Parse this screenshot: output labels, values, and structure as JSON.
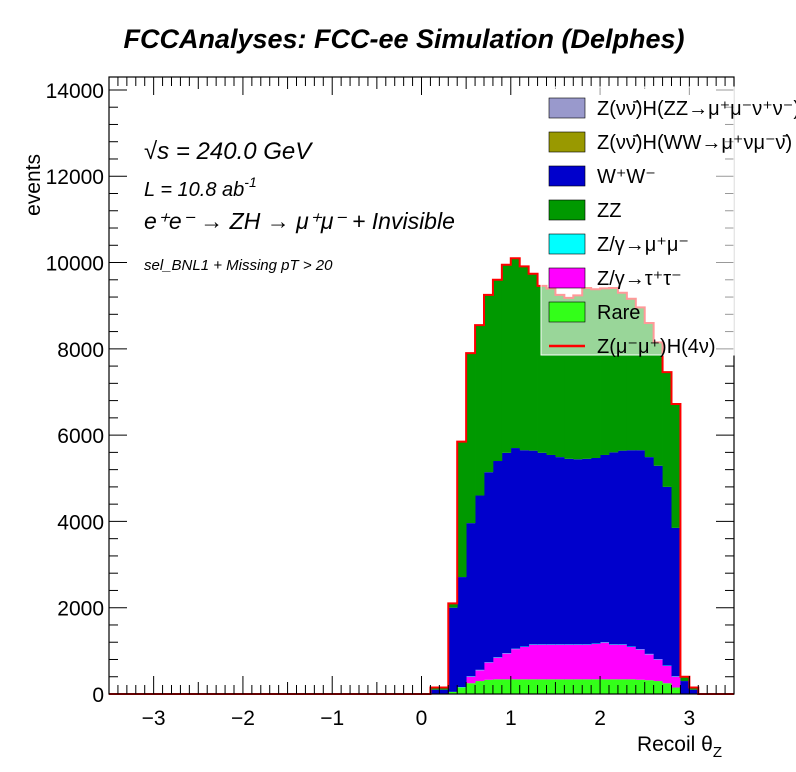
{
  "chart_data": {
    "type": "bar",
    "stacked": true,
    "title": "FCCAnalyses: FCC-ee Simulation (Delphes)",
    "xlabel": "Recoil θ",
    "xlabel_sub": "Z",
    "ylabel": "events",
    "xlim": [
      -3.5,
      3.5
    ],
    "ylim": [
      0,
      14300
    ],
    "x_ticks": [
      -3,
      -2,
      -1,
      0,
      1,
      2,
      3
    ],
    "y_ticks": [
      0,
      2000,
      4000,
      6000,
      8000,
      10000,
      12000,
      14000
    ],
    "legend_position": "top-right",
    "annotations": {
      "sqrt_s": "√s = 240.0 GeV",
      "lumi": "L = 10.8 ab",
      "lumi_sup": "-1",
      "process": "e⁺e⁻ → ZH → μ⁺μ⁻ + Invisible",
      "selection": "sel_BNL1 + Missing pT > 20"
    },
    "bins": {
      "x_start": 0.1,
      "width": 0.1,
      "count": 30
    },
    "series": [
      {
        "name": "Rare",
        "color": "#33ff19",
        "values": [
          0,
          0,
          50,
          150,
          250,
          300,
          330,
          340,
          340,
          340,
          340,
          340,
          340,
          340,
          340,
          340,
          340,
          340,
          340,
          340,
          340,
          340,
          340,
          330,
          320,
          300,
          250,
          150,
          0,
          0
        ]
      },
      {
        "name": "Z/γ→τ⁺τ⁻",
        "color": "#ff00ff",
        "values": [
          0,
          0,
          0,
          0,
          150,
          250,
          400,
          500,
          600,
          700,
          750,
          800,
          800,
          800,
          800,
          800,
          800,
          800,
          820,
          850,
          800,
          800,
          750,
          700,
          600,
          500,
          400,
          250,
          0,
          0
        ]
      },
      {
        "name": "Z/γ→μ⁺μ⁻",
        "color": "#00ffff",
        "values": [
          0,
          0,
          0,
          10,
          10,
          10,
          10,
          10,
          10,
          10,
          10,
          10,
          10,
          10,
          10,
          10,
          10,
          10,
          10,
          10,
          10,
          10,
          10,
          10,
          10,
          10,
          10,
          10,
          0,
          0
        ]
      },
      {
        "name": "W⁺W⁻",
        "color": "#0000cc",
        "values": [
          100,
          100,
          1950,
          2550,
          3550,
          4040,
          4400,
          4550,
          4640,
          4650,
          4550,
          4490,
          4440,
          4390,
          4340,
          4300,
          4290,
          4300,
          4300,
          4340,
          4450,
          4490,
          4550,
          4610,
          4560,
          4480,
          4140,
          3440,
          300,
          100
        ]
      },
      {
        "name": "ZZ",
        "color": "#009900",
        "values": [
          50,
          50,
          100,
          3140,
          3940,
          3940,
          4100,
          4190,
          4350,
          4390,
          4250,
          4100,
          3860,
          3850,
          3750,
          3720,
          3790,
          3950,
          3900,
          3850,
          3800,
          3650,
          3500,
          3300,
          3100,
          2850,
          2650,
          2850,
          100,
          50
        ]
      },
      {
        "name": "Z(νν̄)H(WW→μ⁺νμ⁻ν̄)",
        "color": "#999900",
        "values": [
          0,
          0,
          0,
          0,
          0,
          0,
          0,
          0,
          0,
          0,
          0,
          0,
          0,
          0,
          0,
          0,
          0,
          0,
          0,
          0,
          0,
          0,
          0,
          0,
          0,
          0,
          0,
          0,
          0,
          0
        ]
      },
      {
        "name": "Z(νν̄)H(ZZ→μ⁺μ⁻ν⁺ν⁻)",
        "color": "#9999cc",
        "values": [
          0,
          0,
          0,
          0,
          0,
          0,
          0,
          0,
          0,
          0,
          0,
          0,
          0,
          0,
          0,
          0,
          0,
          0,
          0,
          0,
          0,
          0,
          0,
          0,
          0,
          0,
          0,
          0,
          0,
          0
        ]
      }
    ],
    "signal": {
      "name": "Z(μ⁻μ⁺)H(4ν)",
      "color": "#ff0000",
      "values": [
        150,
        150,
        2100,
        5850,
        7900,
        8550,
        9250,
        9600,
        9950,
        10100,
        9910,
        9740,
        9460,
        9400,
        9250,
        9180,
        9240,
        9410,
        9380,
        9400,
        9410,
        9300,
        9160,
        8960,
        8600,
        8150,
        7460,
        6720,
        400,
        150
      ]
    },
    "legend": [
      "Z(νν̄)H(ZZ→μ⁺μ⁻ν⁺ν⁻)",
      "Z(νν̄)H(WW→μ⁺νμ⁻ν̄)",
      "W⁺W⁻",
      "ZZ",
      "Z/γ→μ⁺μ⁻",
      "Z/γ→τ⁺τ⁻",
      "Rare",
      "Z(μ⁻μ⁺)H(4ν)"
    ]
  }
}
